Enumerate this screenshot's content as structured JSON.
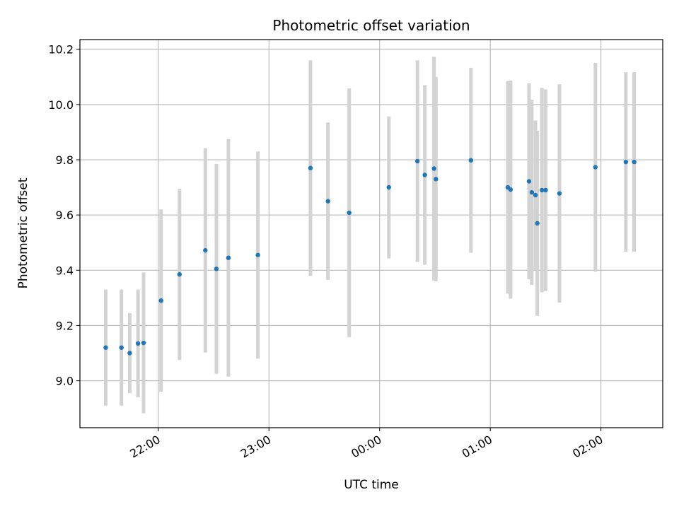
{
  "chart_data": {
    "type": "scatter",
    "title": "Photometric offset variation",
    "xlabel": "UTC time",
    "ylabel": "Photometric offset",
    "x_ticks": [
      {
        "minutes": 0,
        "label": "22:00"
      },
      {
        "minutes": 60,
        "label": "23:00"
      },
      {
        "minutes": 120,
        "label": "00:00"
      },
      {
        "minutes": 180,
        "label": "01:00"
      },
      {
        "minutes": 240,
        "label": "02:00"
      }
    ],
    "y_ticks": [
      "9.0",
      "9.2",
      "9.4",
      "9.6",
      "9.8",
      "10.0",
      "10.2"
    ],
    "xlim_minutes_from_2200": [
      -42.5,
      273.5
    ],
    "ylim": [
      8.83,
      10.235
    ],
    "grid": true,
    "colors": {
      "point": "#1f77b4",
      "errorbar": "#d3d3d3",
      "grid": "#b0b0b0"
    },
    "series": [
      {
        "points": [
          {
            "time": "21:31:30",
            "y": 9.12,
            "err": 0.21
          },
          {
            "time": "21:40:00",
            "y": 9.12,
            "err": 0.21
          },
          {
            "time": "21:44:30",
            "y": 9.1,
            "err": 0.145
          },
          {
            "time": "21:49:00",
            "y": 9.135,
            "err": 0.195
          },
          {
            "time": "21:52:00",
            "y": 9.137,
            "err": 0.255
          },
          {
            "time": "22:01:30",
            "y": 9.29,
            "err": 0.33
          },
          {
            "time": "22:11:30",
            "y": 9.385,
            "err": 0.31
          },
          {
            "time": "22:25:30",
            "y": 9.472,
            "err": 0.37
          },
          {
            "time": "22:31:30",
            "y": 9.405,
            "err": 0.38
          },
          {
            "time": "22:38:00",
            "y": 9.445,
            "err": 0.43
          },
          {
            "time": "22:54:00",
            "y": 9.455,
            "err": 0.375
          },
          {
            "time": "23:22:30",
            "y": 9.77,
            "err": 0.39
          },
          {
            "time": "23:32:00",
            "y": 9.65,
            "err": 0.285
          },
          {
            "time": "23:43:30",
            "y": 9.608,
            "err": 0.45
          },
          {
            "time": "00:05:00",
            "y": 9.7,
            "err": 0.257
          },
          {
            "time": "00:20:30",
            "y": 9.795,
            "err": 0.365
          },
          {
            "time": "00:24:30",
            "y": 9.745,
            "err": 0.325
          },
          {
            "time": "00:29:30",
            "y": 9.768,
            "err": 0.405
          },
          {
            "time": "00:30:30",
            "y": 9.73,
            "err": 0.37
          },
          {
            "time": "00:49:30",
            "y": 9.798,
            "err": 0.335
          },
          {
            "time": "01:09:30",
            "y": 9.7,
            "err": 0.385
          },
          {
            "time": "01:11:00",
            "y": 9.692,
            "err": 0.395
          },
          {
            "time": "01:21:00",
            "y": 9.722,
            "err": 0.355
          },
          {
            "time": "01:22:30",
            "y": 9.682,
            "err": 0.335
          },
          {
            "time": "01:24:30",
            "y": 9.672,
            "err": 0.27
          },
          {
            "time": "01:25:30",
            "y": 9.57,
            "err": 0.335
          },
          {
            "time": "01:28:00",
            "y": 9.69,
            "err": 0.37
          },
          {
            "time": "01:30:00",
            "y": 9.69,
            "err": 0.365
          },
          {
            "time": "01:37:30",
            "y": 9.678,
            "err": 0.395
          },
          {
            "time": "01:57:00",
            "y": 9.773,
            "err": 0.378
          },
          {
            "time": "02:13:30",
            "y": 9.792,
            "err": 0.325
          },
          {
            "time": "02:18:00",
            "y": 9.792,
            "err": 0.325
          }
        ]
      }
    ]
  }
}
